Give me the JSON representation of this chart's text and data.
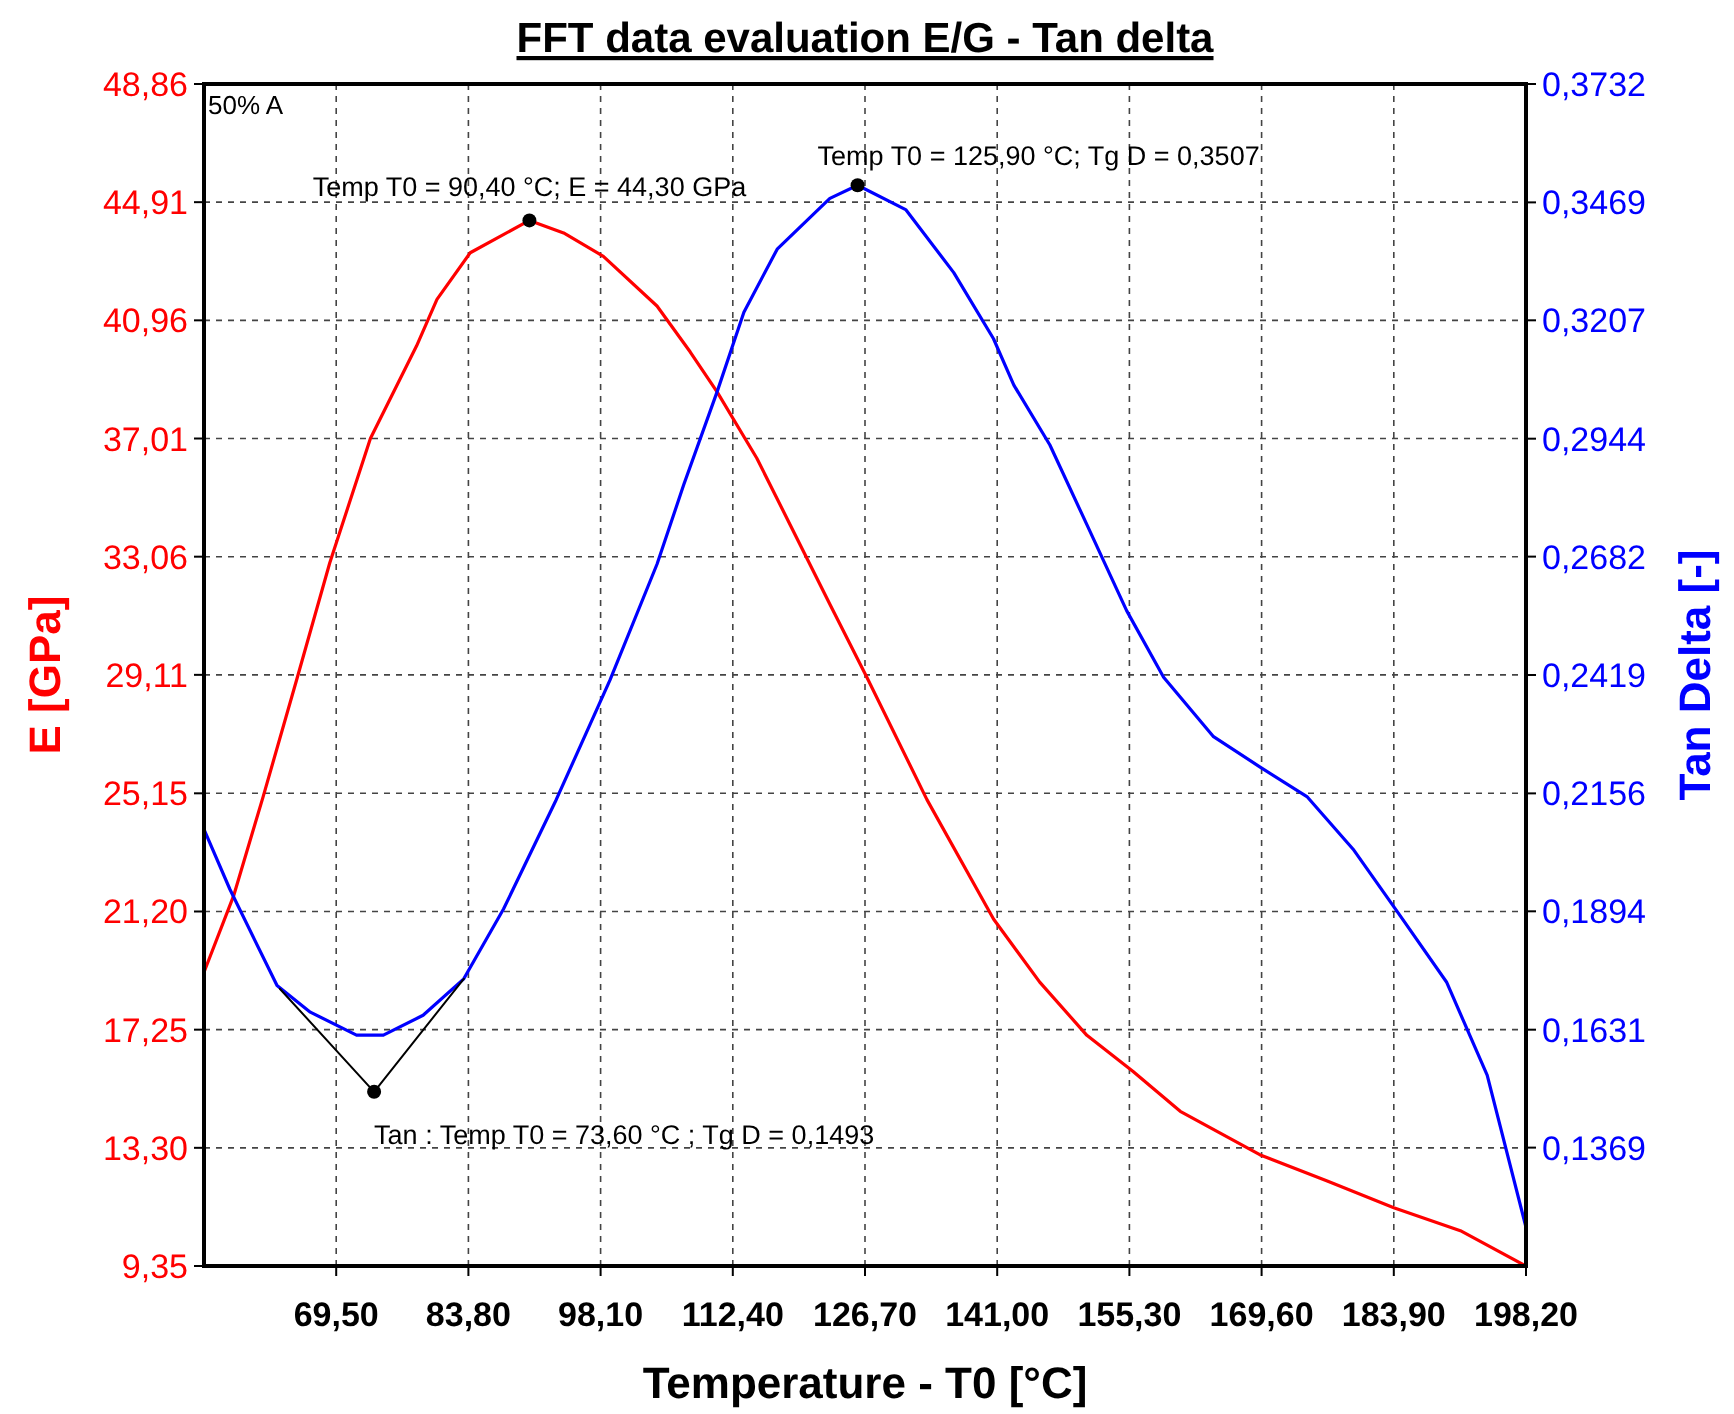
{
  "chart_data": {
    "type": "line",
    "title": "FFT data evaluation E/G - Tan delta",
    "xlabel": "Temperature - T0  [°C]",
    "ylabel": "E  [GPa]",
    "y2label": "Tan Delta  [-]",
    "xlim": [
      55.2,
      198.2
    ],
    "xticks": [
      {
        "value": 69.5,
        "label": "69,50"
      },
      {
        "value": 83.8,
        "label": "83,80"
      },
      {
        "value": 98.1,
        "label": "98,10"
      },
      {
        "value": 112.4,
        "label": "112,40"
      },
      {
        "value": 126.7,
        "label": "126,70"
      },
      {
        "value": 141,
        "label": "141,00"
      },
      {
        "value": 155.3,
        "label": "155,30"
      },
      {
        "value": 169.6,
        "label": "169,60"
      },
      {
        "value": 183.9,
        "label": "183,90"
      },
      {
        "value": 198.2,
        "label": "198,20"
      }
    ],
    "ylim": [
      9.35,
      48.86
    ],
    "yticks": [
      {
        "value": 9.35,
        "label": "9,35"
      },
      {
        "value": 13.3,
        "label": "13,30"
      },
      {
        "value": 17.25,
        "label": "17,25"
      },
      {
        "value": 21.2,
        "label": "21,20"
      },
      {
        "value": 25.15,
        "label": "25,15"
      },
      {
        "value": 29.11,
        "label": "29,11"
      },
      {
        "value": 33.06,
        "label": "33,06"
      },
      {
        "value": 37.01,
        "label": "37,01"
      },
      {
        "value": 40.96,
        "label": "40,96"
      },
      {
        "value": 44.91,
        "label": "44,91"
      },
      {
        "value": 48.86,
        "label": "48,86"
      }
    ],
    "y2lim": [
      0.1106,
      0.3732
    ],
    "y2ticks": [
      {
        "value": 0.1369,
        "label": "0,1369"
      },
      {
        "value": 0.1631,
        "label": "0,1631"
      },
      {
        "value": 0.1894,
        "label": "0,1894"
      },
      {
        "value": 0.2156,
        "label": "0,2156"
      },
      {
        "value": 0.2419,
        "label": "0,2419"
      },
      {
        "value": 0.2682,
        "label": "0,2682"
      },
      {
        "value": 0.2944,
        "label": "0,2944"
      },
      {
        "value": 0.3207,
        "label": "0,3207"
      },
      {
        "value": 0.3469,
        "label": "0,3469"
      },
      {
        "value": 0.3732,
        "label": "0,3732"
      }
    ],
    "grid": true,
    "line_style": "solid",
    "marker": "none",
    "series": [
      {
        "color": "#ff0000",
        "x": [
          55.2,
          58.4,
          61.6,
          65.2,
          68.8,
          73.2,
          78.2,
          80.4,
          84.0,
          90.4,
          94.1,
          98.4,
          104.2,
          107.8,
          110.7,
          115.0,
          118.6,
          122.9,
          126.9,
          133.4,
          140.6,
          145.6,
          150.7,
          155.7,
          160.8,
          169.4,
          176.7,
          183.9,
          191.1,
          198.2
        ],
        "values": [
          19.17,
          21.72,
          25.04,
          28.92,
          32.85,
          37.01,
          40.11,
          41.66,
          43.22,
          44.3,
          43.88,
          43.1,
          41.44,
          39.9,
          38.57,
          36.35,
          34.13,
          31.47,
          29.03,
          24.94,
          20.95,
          18.84,
          17.06,
          15.85,
          14.52,
          13.07,
          12.19,
          11.3,
          10.53,
          9.35
        ]
      },
      {
        "axis": "y2",
        "color": "#0000ff",
        "x": [
          55.2,
          58.0,
          63.1,
          66.7,
          71.7,
          74.6,
          78.9,
          83.3,
          87.6,
          93.3,
          99.1,
          104.2,
          107.1,
          110.7,
          113.6,
          117.2,
          122.9,
          125.9,
          131.1,
          136.3,
          140.6,
          142.8,
          146.7,
          150.7,
          155.0,
          159.0,
          164.4,
          169.4,
          174.5,
          179.5,
          184.6,
          189.6,
          194.0,
          198.2
        ],
        "values": [
          0.2076,
          0.1943,
          0.1729,
          0.167,
          0.1619,
          0.1619,
          0.1663,
          0.1744,
          0.1899,
          0.2142,
          0.2407,
          0.2665,
          0.2842,
          0.3048,
          0.3225,
          0.3365,
          0.3478,
          0.3507,
          0.3453,
          0.3313,
          0.3166,
          0.3063,
          0.293,
          0.2753,
          0.2562,
          0.2414,
          0.2282,
          0.2215,
          0.2149,
          0.2032,
          0.1884,
          0.1737,
          0.153,
          0.1192
        ]
      },
      {
        "axis": "y2",
        "color": "#000000",
        "x": [
          63.4,
          73.6
        ],
        "values": [
          0.1722,
          0.1493
        ]
      },
      {
        "axis": "y2",
        "color": "#000000",
        "x": [
          73.6,
          83.3
        ],
        "values": [
          0.1493,
          0.1744
        ]
      },
      {
        "type": "scatter",
        "color": "#000000",
        "marker": "circle",
        "x": [
          90.4
        ],
        "values": [
          44.3
        ]
      },
      {
        "type": "scatter",
        "axis": "y2",
        "color": "#000000",
        "marker": "circle",
        "x": [
          125.9,
          73.6
        ],
        "values": [
          0.3507,
          0.1493
        ]
      }
    ],
    "annotations": [
      "50% A",
      {
        "text": "Temp T0 = 90,40  °C; E = 44,30  GPa",
        "x": 90.4,
        "y": 44.3
      },
      {
        "text": "Temp T0 = 125,90  °C; Tg D = 0,3507",
        "x": 125.9,
        "y": 45.47
      },
      {
        "text": "Tan : Temp T0 = 73,60  °C ; Tg D = 0,1493",
        "x": 73.6,
        "y": 15.17
      }
    ]
  }
}
